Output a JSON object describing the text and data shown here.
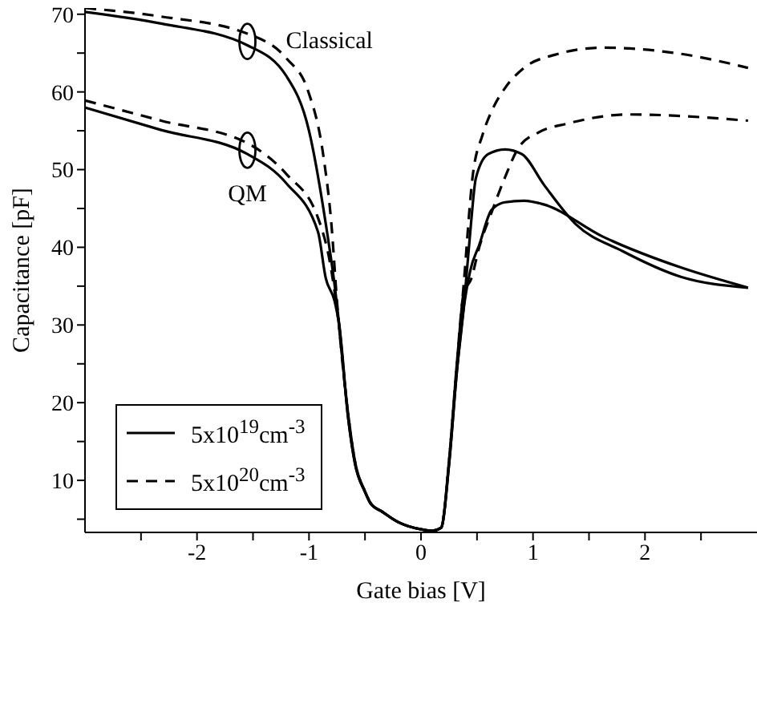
{
  "chart_data": {
    "type": "line",
    "xlabel": "Gate bias [V]",
    "ylabel": "Capacitance [pF]",
    "xlim": [
      -3,
      3
    ],
    "ylim": [
      3.3,
      70.8
    ],
    "xticks": [
      {
        "value": -2.5,
        "label": null
      },
      -2,
      {
        "value": -1.5,
        "label": null
      },
      -1,
      {
        "value": -0.5,
        "label": null
      },
      0,
      {
        "value": 0.5,
        "label": null
      },
      1,
      {
        "value": 1.5,
        "label": null
      },
      2,
      {
        "value": 2.5,
        "label": null
      }
    ],
    "yticks": [
      {
        "value": 5,
        "label": null
      },
      10,
      {
        "value": 15,
        "label": null
      },
      20,
      {
        "value": 25,
        "label": null
      },
      30,
      {
        "value": 35,
        "label": null
      },
      40,
      {
        "value": 45,
        "label": null
      },
      50,
      {
        "value": 55,
        "label": null
      },
      60,
      {
        "value": 65,
        "label": null
      },
      70
    ],
    "grid": false,
    "legend": "bottom left",
    "marker": "none",
    "series": [
      {
        "name": "5x10$^{19}$cm$^{-3}$",
        "color": "#000000",
        "line_style": "solid",
        "x": [
          -3,
          -2.32,
          -1.55,
          -1.2,
          -1.0,
          -0.85,
          -0.77,
          -0.73,
          -0.65,
          -0.59,
          -0.5,
          -0.45,
          -0.35,
          -0.2,
          0,
          0.1,
          0.18,
          0.25,
          0.32,
          0.38,
          0.44,
          0.49,
          0.6,
          0.75,
          0.9,
          1.1,
          1.38,
          1.8,
          2.32,
          2.92
        ],
        "values": [
          70.3,
          68.8,
          66,
          62,
          55,
          43,
          35,
          30,
          18,
          12.2,
          8.5,
          7,
          6,
          4.6,
          3.7,
          3.5,
          3.9,
          12,
          24,
          32,
          42,
          48.9,
          52,
          52.6,
          52,
          48,
          43,
          39.5,
          36.2,
          34.8
        ]
      },
      {
        "name": "5x10$^{20}$cm$^{-3}$",
        "color": "#000000",
        "line_style": "dashed",
        "x": [
          -3,
          -2.32,
          -1.55,
          -1.2,
          -1.01,
          -0.87,
          -0.8,
          -0.75,
          -0.65,
          -0.59,
          -0.5,
          -0.45,
          -0.35,
          -0.2,
          0,
          0.1,
          0.18,
          0.25,
          0.32,
          0.38,
          0.46,
          0.55,
          0.63,
          0.75,
          0.92,
          1.2,
          1.62,
          2.32,
          2.92
        ],
        "values": [
          70.8,
          69.7,
          67.5,
          64.3,
          60.2,
          51.6,
          43,
          33,
          18.5,
          12.5,
          8.6,
          7.1,
          6,
          4.6,
          3.7,
          3.5,
          3.9,
          12.5,
          25,
          35,
          49,
          54.5,
          57.5,
          60.5,
          63.1,
          64.8,
          65.7,
          64.9,
          63.1
        ]
      },
      {
        "color": "#000000",
        "line_style": "solid",
        "x": [
          -3,
          -2.32,
          -1.55,
          -1.2,
          -0.92,
          -0.85,
          -0.77,
          -0.73,
          -0.65,
          -0.59,
          -0.5,
          -0.45,
          -0.35,
          -0.2,
          0,
          0.1,
          0.18,
          0.25,
          0.32,
          0.38,
          0.44,
          0.52,
          0.63,
          0.75,
          0.92,
          1.1,
          1.62,
          2.32,
          2.92
        ],
        "values": [
          58,
          55.1,
          52,
          48.2,
          42,
          36,
          33,
          30,
          18,
          12.2,
          8.5,
          7,
          6,
          4.6,
          3.7,
          3.5,
          3.9,
          12,
          24,
          32,
          37,
          40.3,
          44.8,
          45.8,
          46,
          45.5,
          41.4,
          37.4,
          34.8
        ]
      },
      {
        "color": "#000000",
        "line_style": "dashed",
        "x": [
          -3,
          -2.32,
          -1.55,
          -1.2,
          -0.92,
          -0.8,
          -0.75,
          -0.65,
          -0.59,
          -0.5,
          -0.45,
          -0.35,
          -0.2,
          0,
          0.1,
          0.18,
          0.25,
          0.32,
          0.38,
          0.45,
          0.52,
          0.63,
          0.75,
          0.87,
          1.05,
          1.3,
          1.86,
          2.92
        ],
        "values": [
          58.9,
          56.3,
          53.4,
          49.4,
          43.8,
          37,
          32,
          18.5,
          12.5,
          8.6,
          7.1,
          6,
          4.6,
          3.7,
          3.5,
          3.9,
          12.5,
          25,
          34,
          36,
          40,
          44.5,
          49,
          52.8,
          54.8,
          55.9,
          57.1,
          56.3
        ]
      }
    ],
    "annotations": [
      {
        "text": "Classical",
        "x": -1.55,
        "y": 66.5
      },
      {
        "text": "QM",
        "x": -1.55,
        "y": 52.5
      }
    ]
  }
}
